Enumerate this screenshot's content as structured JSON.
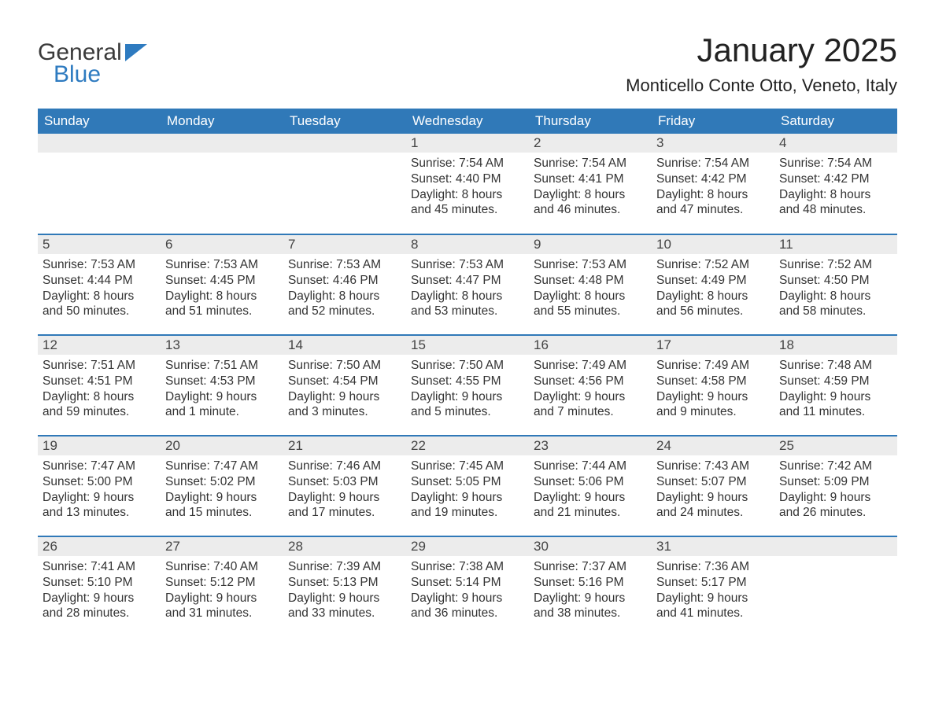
{
  "logo": {
    "general": "General",
    "blue": "Blue",
    "icon_color": "#2e7bc0"
  },
  "title": "January 2025",
  "location": "Monticello Conte Otto, Veneto, Italy",
  "colors": {
    "header_bg": "#3079b8",
    "header_text": "#ffffff",
    "daynum_bg": "#ececec",
    "row_border": "#3079b8",
    "body_text": "#333333",
    "page_bg": "#ffffff"
  },
  "typography": {
    "title_fontsize": 42,
    "location_fontsize": 22,
    "header_fontsize": 17,
    "daynum_fontsize": 17,
    "body_fontsize": 15.5
  },
  "weekdays": [
    "Sunday",
    "Monday",
    "Tuesday",
    "Wednesday",
    "Thursday",
    "Friday",
    "Saturday"
  ],
  "weeks": [
    [
      {
        "day": "",
        "sunrise": "",
        "sunset": "",
        "daylight": ""
      },
      {
        "day": "",
        "sunrise": "",
        "sunset": "",
        "daylight": ""
      },
      {
        "day": "",
        "sunrise": "",
        "sunset": "",
        "daylight": ""
      },
      {
        "day": "1",
        "sunrise": "Sunrise: 7:54 AM",
        "sunset": "Sunset: 4:40 PM",
        "daylight": "Daylight: 8 hours and 45 minutes."
      },
      {
        "day": "2",
        "sunrise": "Sunrise: 7:54 AM",
        "sunset": "Sunset: 4:41 PM",
        "daylight": "Daylight: 8 hours and 46 minutes."
      },
      {
        "day": "3",
        "sunrise": "Sunrise: 7:54 AM",
        "sunset": "Sunset: 4:42 PM",
        "daylight": "Daylight: 8 hours and 47 minutes."
      },
      {
        "day": "4",
        "sunrise": "Sunrise: 7:54 AM",
        "sunset": "Sunset: 4:42 PM",
        "daylight": "Daylight: 8 hours and 48 minutes."
      }
    ],
    [
      {
        "day": "5",
        "sunrise": "Sunrise: 7:53 AM",
        "sunset": "Sunset: 4:44 PM",
        "daylight": "Daylight: 8 hours and 50 minutes."
      },
      {
        "day": "6",
        "sunrise": "Sunrise: 7:53 AM",
        "sunset": "Sunset: 4:45 PM",
        "daylight": "Daylight: 8 hours and 51 minutes."
      },
      {
        "day": "7",
        "sunrise": "Sunrise: 7:53 AM",
        "sunset": "Sunset: 4:46 PM",
        "daylight": "Daylight: 8 hours and 52 minutes."
      },
      {
        "day": "8",
        "sunrise": "Sunrise: 7:53 AM",
        "sunset": "Sunset: 4:47 PM",
        "daylight": "Daylight: 8 hours and 53 minutes."
      },
      {
        "day": "9",
        "sunrise": "Sunrise: 7:53 AM",
        "sunset": "Sunset: 4:48 PM",
        "daylight": "Daylight: 8 hours and 55 minutes."
      },
      {
        "day": "10",
        "sunrise": "Sunrise: 7:52 AM",
        "sunset": "Sunset: 4:49 PM",
        "daylight": "Daylight: 8 hours and 56 minutes."
      },
      {
        "day": "11",
        "sunrise": "Sunrise: 7:52 AM",
        "sunset": "Sunset: 4:50 PM",
        "daylight": "Daylight: 8 hours and 58 minutes."
      }
    ],
    [
      {
        "day": "12",
        "sunrise": "Sunrise: 7:51 AM",
        "sunset": "Sunset: 4:51 PM",
        "daylight": "Daylight: 8 hours and 59 minutes."
      },
      {
        "day": "13",
        "sunrise": "Sunrise: 7:51 AM",
        "sunset": "Sunset: 4:53 PM",
        "daylight": "Daylight: 9 hours and 1 minute."
      },
      {
        "day": "14",
        "sunrise": "Sunrise: 7:50 AM",
        "sunset": "Sunset: 4:54 PM",
        "daylight": "Daylight: 9 hours and 3 minutes."
      },
      {
        "day": "15",
        "sunrise": "Sunrise: 7:50 AM",
        "sunset": "Sunset: 4:55 PM",
        "daylight": "Daylight: 9 hours and 5 minutes."
      },
      {
        "day": "16",
        "sunrise": "Sunrise: 7:49 AM",
        "sunset": "Sunset: 4:56 PM",
        "daylight": "Daylight: 9 hours and 7 minutes."
      },
      {
        "day": "17",
        "sunrise": "Sunrise: 7:49 AM",
        "sunset": "Sunset: 4:58 PM",
        "daylight": "Daylight: 9 hours and 9 minutes."
      },
      {
        "day": "18",
        "sunrise": "Sunrise: 7:48 AM",
        "sunset": "Sunset: 4:59 PM",
        "daylight": "Daylight: 9 hours and 11 minutes."
      }
    ],
    [
      {
        "day": "19",
        "sunrise": "Sunrise: 7:47 AM",
        "sunset": "Sunset: 5:00 PM",
        "daylight": "Daylight: 9 hours and 13 minutes."
      },
      {
        "day": "20",
        "sunrise": "Sunrise: 7:47 AM",
        "sunset": "Sunset: 5:02 PM",
        "daylight": "Daylight: 9 hours and 15 minutes."
      },
      {
        "day": "21",
        "sunrise": "Sunrise: 7:46 AM",
        "sunset": "Sunset: 5:03 PM",
        "daylight": "Daylight: 9 hours and 17 minutes."
      },
      {
        "day": "22",
        "sunrise": "Sunrise: 7:45 AM",
        "sunset": "Sunset: 5:05 PM",
        "daylight": "Daylight: 9 hours and 19 minutes."
      },
      {
        "day": "23",
        "sunrise": "Sunrise: 7:44 AM",
        "sunset": "Sunset: 5:06 PM",
        "daylight": "Daylight: 9 hours and 21 minutes."
      },
      {
        "day": "24",
        "sunrise": "Sunrise: 7:43 AM",
        "sunset": "Sunset: 5:07 PM",
        "daylight": "Daylight: 9 hours and 24 minutes."
      },
      {
        "day": "25",
        "sunrise": "Sunrise: 7:42 AM",
        "sunset": "Sunset: 5:09 PM",
        "daylight": "Daylight: 9 hours and 26 minutes."
      }
    ],
    [
      {
        "day": "26",
        "sunrise": "Sunrise: 7:41 AM",
        "sunset": "Sunset: 5:10 PM",
        "daylight": "Daylight: 9 hours and 28 minutes."
      },
      {
        "day": "27",
        "sunrise": "Sunrise: 7:40 AM",
        "sunset": "Sunset: 5:12 PM",
        "daylight": "Daylight: 9 hours and 31 minutes."
      },
      {
        "day": "28",
        "sunrise": "Sunrise: 7:39 AM",
        "sunset": "Sunset: 5:13 PM",
        "daylight": "Daylight: 9 hours and 33 minutes."
      },
      {
        "day": "29",
        "sunrise": "Sunrise: 7:38 AM",
        "sunset": "Sunset: 5:14 PM",
        "daylight": "Daylight: 9 hours and 36 minutes."
      },
      {
        "day": "30",
        "sunrise": "Sunrise: 7:37 AM",
        "sunset": "Sunset: 5:16 PM",
        "daylight": "Daylight: 9 hours and 38 minutes."
      },
      {
        "day": "31",
        "sunrise": "Sunrise: 7:36 AM",
        "sunset": "Sunset: 5:17 PM",
        "daylight": "Daylight: 9 hours and 41 minutes."
      },
      {
        "day": "",
        "sunrise": "",
        "sunset": "",
        "daylight": ""
      }
    ]
  ]
}
